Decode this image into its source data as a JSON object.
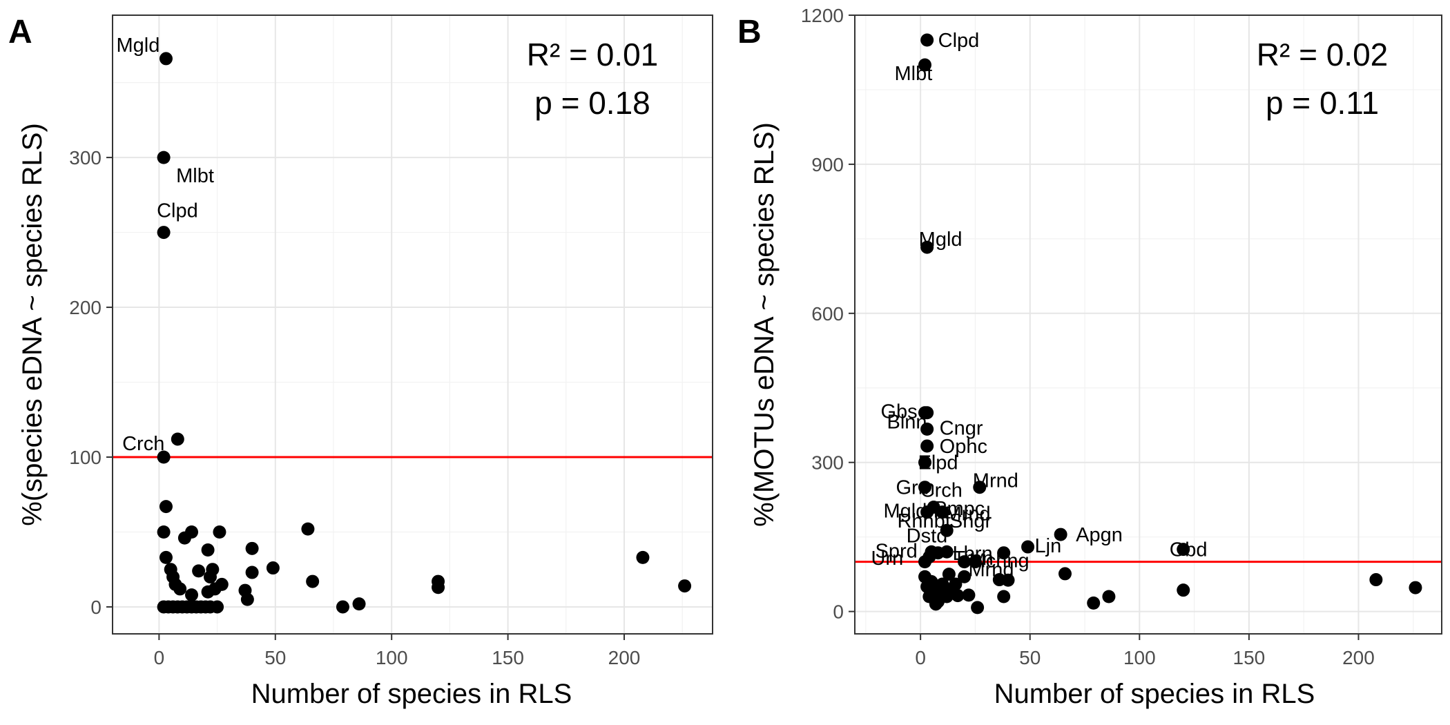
{
  "chart_data": [
    {
      "type": "scatter",
      "panel": "A",
      "xlabel": "Number of species in RLS",
      "ylabel": "%(species eDNA ~ species RLS)",
      "xlim": [
        -20,
        238
      ],
      "ylim": [
        -18,
        395
      ],
      "xticks": [
        0,
        50,
        100,
        150,
        200
      ],
      "yticks": [
        0,
        100,
        200,
        300
      ],
      "grid": true,
      "reference_line": {
        "y": 100,
        "color": "#ff0000"
      },
      "stats": {
        "r2": "R² = 0.01",
        "p": "p = 0.18"
      },
      "points": [
        [
          3,
          366
        ],
        [
          2,
          300
        ],
        [
          2,
          250
        ],
        [
          2,
          100
        ],
        [
          8,
          112
        ],
        [
          3,
          67
        ],
        [
          2,
          50
        ],
        [
          11,
          46
        ],
        [
          14,
          50
        ],
        [
          26,
          50
        ],
        [
          3,
          33
        ],
        [
          5,
          25
        ],
        [
          6,
          20
        ],
        [
          7,
          15
        ],
        [
          9,
          12
        ],
        [
          17,
          24
        ],
        [
          21,
          38
        ],
        [
          23,
          25
        ],
        [
          22,
          20
        ],
        [
          24,
          12
        ],
        [
          27,
          15
        ],
        [
          21,
          10
        ],
        [
          37,
          11
        ],
        [
          38,
          5
        ],
        [
          40,
          39
        ],
        [
          40,
          23
        ],
        [
          49,
          26
        ],
        [
          64,
          52
        ],
        [
          66,
          17
        ],
        [
          79,
          0
        ],
        [
          86,
          2
        ],
        [
          120,
          17
        ],
        [
          120,
          13
        ],
        [
          208,
          33
        ],
        [
          226,
          14
        ],
        [
          14,
          8
        ],
        [
          2,
          0
        ],
        [
          4,
          0
        ],
        [
          6,
          0
        ],
        [
          8,
          0
        ],
        [
          10,
          0
        ],
        [
          12,
          0
        ],
        [
          14,
          0
        ],
        [
          16,
          0
        ],
        [
          18,
          0
        ],
        [
          20,
          0
        ],
        [
          22,
          0
        ],
        [
          25,
          0
        ]
      ],
      "labels": [
        {
          "text": "Mgld",
          "x": 3,
          "y": 366
        },
        {
          "text": "Mlbt",
          "x": 2,
          "y": 300
        },
        {
          "text": "Clpd",
          "x": 2,
          "y": 250
        },
        {
          "text": "Crch",
          "x": 2,
          "y": 100
        }
      ]
    },
    {
      "type": "scatter",
      "panel": "B",
      "xlabel": "Number of species in RLS",
      "ylabel": "%(MOTUs eDNA ~ species RLS)",
      "xlim": [
        -30,
        238
      ],
      "ylim": [
        -45,
        1200
      ],
      "xticks": [
        0,
        50,
        100,
        150,
        200
      ],
      "yticks": [
        0,
        300,
        600,
        900,
        1200
      ],
      "grid": true,
      "reference_line": {
        "y": 100,
        "color": "#ff0000"
      },
      "stats": {
        "r2": "R² = 0.02",
        "p": "p = 0.11"
      },
      "points": [
        [
          3,
          1150
        ],
        [
          2,
          1100
        ],
        [
          3,
          733
        ],
        [
          2,
          400
        ],
        [
          3,
          400
        ],
        [
          3,
          367
        ],
        [
          3,
          333
        ],
        [
          2,
          300
        ],
        [
          27,
          250
        ],
        [
          2,
          250
        ],
        [
          3,
          200
        ],
        [
          6,
          210
        ],
        [
          10,
          200
        ],
        [
          12,
          163
        ],
        [
          5,
          120
        ],
        [
          8,
          118
        ],
        [
          2,
          100
        ],
        [
          4,
          110
        ],
        [
          12,
          120
        ],
        [
          20,
          100
        ],
        [
          25,
          100
        ],
        [
          38,
          118
        ],
        [
          49,
          130
        ],
        [
          64,
          155
        ],
        [
          66,
          76
        ],
        [
          120,
          125
        ],
        [
          120,
          43
        ],
        [
          208,
          64
        ],
        [
          226,
          48
        ],
        [
          79,
          17
        ],
        [
          86,
          30
        ],
        [
          40,
          63
        ],
        [
          36,
          64
        ],
        [
          38,
          30
        ],
        [
          26,
          8
        ],
        [
          22,
          33
        ],
        [
          17,
          32
        ],
        [
          14,
          45
        ],
        [
          12,
          30
        ],
        [
          10,
          55
        ],
        [
          8,
          20
        ],
        [
          7,
          15
        ],
        [
          6,
          40
        ],
        [
          5,
          60
        ],
        [
          4,
          30
        ],
        [
          3,
          50
        ],
        [
          2,
          70
        ],
        [
          20,
          70
        ],
        [
          13,
          75
        ],
        [
          16,
          55
        ],
        [
          9,
          35
        ]
      ],
      "labels": [
        {
          "text": "Clpd",
          "x": 3,
          "y": 1150
        },
        {
          "text": "Mlbt",
          "x": 2,
          "y": 1100
        },
        {
          "text": "Mgld",
          "x": 3,
          "y": 733
        },
        {
          "text": "Gbs",
          "x": 2,
          "y": 400
        },
        {
          "text": "Blnn",
          "x": 2,
          "y": 385
        },
        {
          "text": "Cngr",
          "x": 3,
          "y": 367
        },
        {
          "text": "Ophc",
          "x": 3,
          "y": 333
        },
        {
          "text": "Elpd",
          "x": 2,
          "y": 300
        },
        {
          "text": "Mrnd",
          "x": 27,
          "y": 250
        },
        {
          "text": "Grm",
          "x": 2,
          "y": 250
        },
        {
          "text": "Crch",
          "x": 3,
          "y": 225
        },
        {
          "text": "Mgldn",
          "x": 2,
          "y": 200
        },
        {
          "text": "Pmpc",
          "x": 6,
          "y": 205
        },
        {
          "text": "Mrnd",
          "x": 8,
          "y": 195
        },
        {
          "text": "Rhnbt",
          "x": 2,
          "y": 180
        },
        {
          "text": "Sngr",
          "x": 10,
          "y": 180
        },
        {
          "text": "Dstd",
          "x": 3,
          "y": 150
        },
        {
          "text": "Apgn",
          "x": 64,
          "y": 155
        },
        {
          "text": "Sprd",
          "x": 2,
          "y": 120
        },
        {
          "text": "Lbrn",
          "x": 14,
          "y": 115
        },
        {
          "text": "Ljn",
          "x": 49,
          "y": 130
        },
        {
          "text": "Gbd",
          "x": 120,
          "y": 125
        },
        {
          "text": "Urn",
          "x": 2,
          "y": 105
        },
        {
          "text": "Tran",
          "x": 18,
          "y": 105
        },
        {
          "text": "Mchng",
          "x": 26,
          "y": 100
        },
        {
          "text": "Mrnd",
          "x": 25,
          "y": 85
        }
      ]
    }
  ],
  "panels": [
    {
      "tag": "A",
      "xlabel": "Number of species in RLS",
      "ylabel": "%(species eDNA ~ species RLS)",
      "r2": "R² = 0.01",
      "p": "p = 0.18"
    },
    {
      "tag": "B",
      "xlabel": "Number of species in RLS",
      "ylabel": "%(MOTUs eDNA ~ species RLS)",
      "r2": "R² = 0.02",
      "p": "p = 0.11"
    }
  ],
  "colors": {
    "point": "#000000",
    "reference_line": "#ff0000",
    "frame": "#333333",
    "grid": "#e6e6e6",
    "tick_text": "#4d4d4d"
  }
}
